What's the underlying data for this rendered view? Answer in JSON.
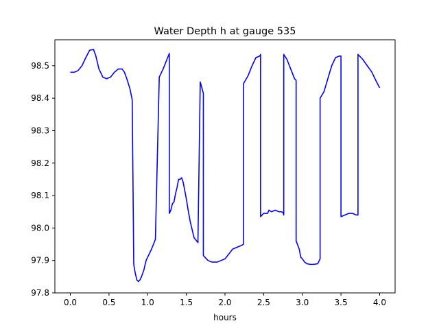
{
  "chart_data": {
    "type": "line",
    "title": "Water Depth h at gauge 535",
    "xlabel": "hours",
    "ylabel": "",
    "xlim": [
      -0.2,
      4.2
    ],
    "ylim": [
      97.8,
      98.58
    ],
    "x_ticks": [
      0.0,
      0.5,
      1.0,
      1.5,
      2.0,
      2.5,
      3.0,
      3.5,
      4.0
    ],
    "x_tick_labels": [
      "0.0",
      "0.5",
      "1.0",
      "1.5",
      "2.0",
      "2.5",
      "3.0",
      "3.5",
      "4.0"
    ],
    "y_ticks": [
      97.8,
      97.9,
      98.0,
      98.1,
      98.2,
      98.3,
      98.4,
      98.5
    ],
    "y_tick_labels": [
      "97.8",
      "97.9",
      "98.0",
      "98.1",
      "98.2",
      "98.3",
      "98.4",
      "98.5"
    ],
    "grid": false,
    "series": [
      {
        "color": "#0000ff",
        "x": [
          0.0,
          0.05,
          0.1,
          0.15,
          0.2,
          0.25,
          0.3,
          0.33,
          0.37,
          0.42,
          0.47,
          0.52,
          0.57,
          0.62,
          0.67,
          0.7,
          0.73,
          0.77,
          0.8,
          0.82,
          0.825,
          0.84,
          0.86,
          0.88,
          0.9,
          0.92,
          0.95,
          0.98,
          1.0,
          1.05,
          1.1,
          1.15,
          1.15,
          1.2,
          1.25,
          1.28,
          1.28,
          1.3,
          1.32,
          1.34,
          1.36,
          1.38,
          1.4,
          1.42,
          1.44,
          1.46,
          1.48,
          1.5,
          1.52,
          1.55,
          1.6,
          1.65,
          1.68,
          1.68,
          1.72,
          1.72,
          1.78,
          1.83,
          1.9,
          1.95,
          2.0,
          2.05,
          2.1,
          2.15,
          2.2,
          2.24,
          2.24,
          2.3,
          2.35,
          2.4,
          2.45,
          2.46,
          2.46,
          2.5,
          2.55,
          2.57,
          2.6,
          2.65,
          2.7,
          2.73,
          2.75,
          2.76,
          2.76,
          2.8,
          2.85,
          2.9,
          2.92,
          2.92,
          2.96,
          2.98,
          3.0,
          3.03,
          3.06,
          3.1,
          3.15,
          3.2,
          3.23,
          3.23,
          3.28,
          3.33,
          3.38,
          3.43,
          3.48,
          3.5,
          3.5,
          3.55,
          3.6,
          3.65,
          3.7,
          3.72,
          3.72,
          3.78,
          3.84,
          3.9,
          3.95,
          4.0
        ],
        "values": [
          98.48,
          98.48,
          98.485,
          98.5,
          98.525,
          98.548,
          98.55,
          98.53,
          98.49,
          98.465,
          98.46,
          98.465,
          98.48,
          98.49,
          98.49,
          98.48,
          98.46,
          98.43,
          98.395,
          97.89,
          97.88,
          97.86,
          97.84,
          97.835,
          97.84,
          97.85,
          97.87,
          97.9,
          97.91,
          97.935,
          97.965,
          98.465,
          98.465,
          98.49,
          98.52,
          98.538,
          98.045,
          98.055,
          98.075,
          98.08,
          98.105,
          98.125,
          98.15,
          98.15,
          98.155,
          98.14,
          98.115,
          98.09,
          98.06,
          98.02,
          97.97,
          97.955,
          98.45,
          98.45,
          98.415,
          97.915,
          97.9,
          97.895,
          97.895,
          97.9,
          97.905,
          97.92,
          97.935,
          97.94,
          97.945,
          97.95,
          98.445,
          98.47,
          98.5,
          98.525,
          98.53,
          98.535,
          98.035,
          98.045,
          98.045,
          98.055,
          98.05,
          98.055,
          98.05,
          98.05,
          98.048,
          98.04,
          98.535,
          98.52,
          98.49,
          98.46,
          98.455,
          97.96,
          97.935,
          97.91,
          97.905,
          97.895,
          97.89,
          97.888,
          97.888,
          97.89,
          97.905,
          98.4,
          98.42,
          98.46,
          98.5,
          98.525,
          98.53,
          98.53,
          98.035,
          98.04,
          98.045,
          98.045,
          98.04,
          98.04,
          98.535,
          98.52,
          98.5,
          98.48,
          98.455,
          98.432
        ]
      }
    ]
  }
}
